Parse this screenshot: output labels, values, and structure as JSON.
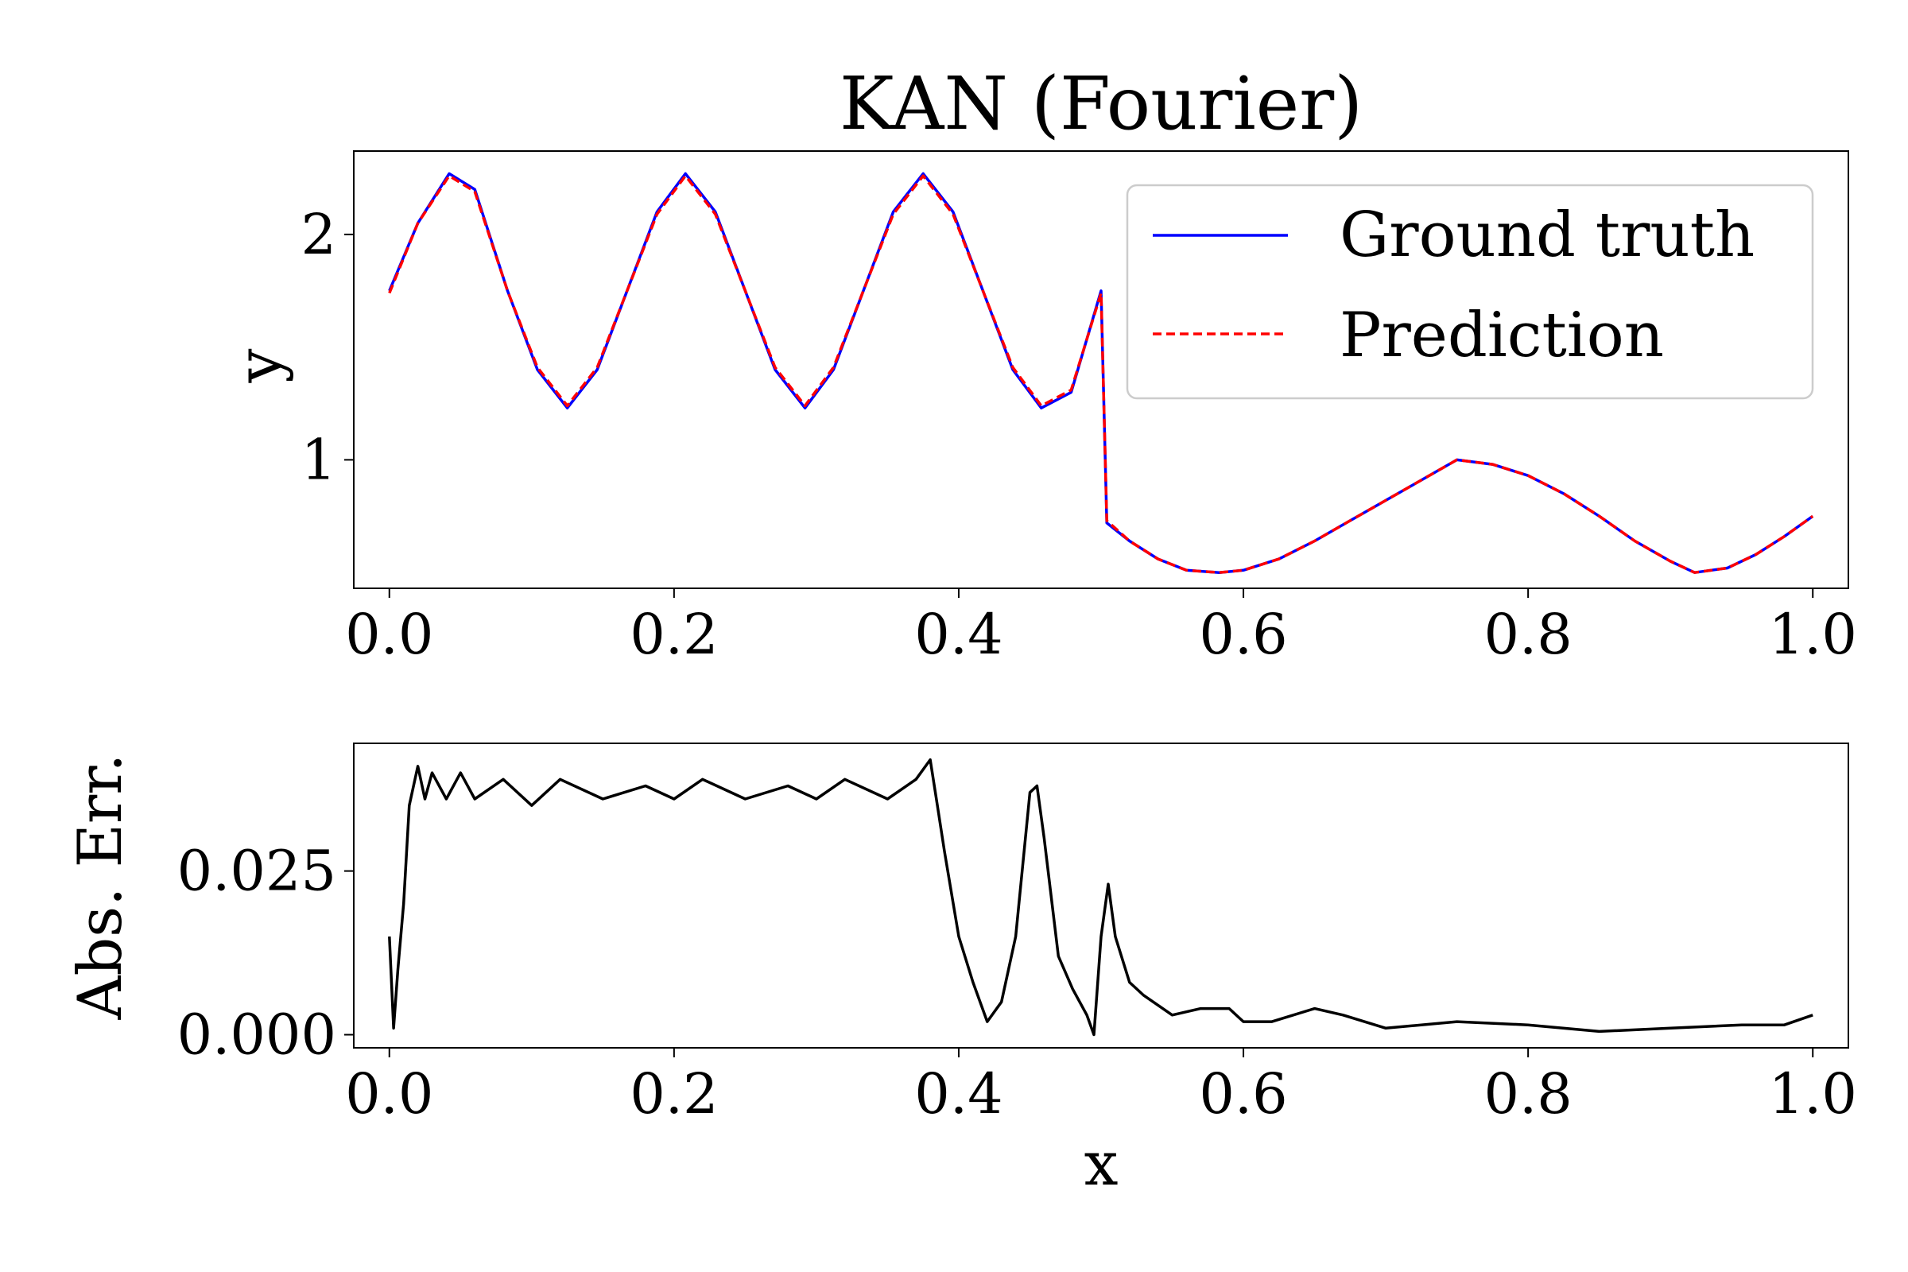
{
  "chart_data": [
    {
      "type": "line",
      "title": "KAN (Fourier)",
      "xlabel": "",
      "ylabel": "y",
      "xlim": [
        -0.025,
        1.025
      ],
      "ylim": [
        0.43,
        2.37
      ],
      "x_ticks": [
        "0.0",
        "0.2",
        "0.4",
        "0.6",
        "0.8",
        "1.0"
      ],
      "y_ticks": [
        "1",
        "2"
      ],
      "grid": false,
      "legend": {
        "placement": "top-right",
        "entries": [
          "Ground truth",
          "Prediction"
        ]
      },
      "series": [
        {
          "name": "Ground truth",
          "color": "#0000ff",
          "style": "solid",
          "x": [
            0.0,
            0.02,
            0.042,
            0.06,
            0.083,
            0.104,
            0.125,
            0.146,
            0.167,
            0.188,
            0.208,
            0.229,
            0.25,
            0.271,
            0.292,
            0.312,
            0.333,
            0.354,
            0.375,
            0.396,
            0.417,
            0.438,
            0.458,
            0.479,
            0.5,
            0.504,
            0.52,
            0.54,
            0.56,
            0.583,
            0.6,
            0.625,
            0.65,
            0.675,
            0.7,
            0.725,
            0.75,
            0.775,
            0.8,
            0.825,
            0.85,
            0.875,
            0.9,
            0.917,
            0.94,
            0.96,
            0.98,
            1.0
          ],
          "y": [
            1.75,
            2.05,
            2.27,
            2.2,
            1.75,
            1.4,
            1.23,
            1.4,
            1.75,
            2.1,
            2.27,
            2.1,
            1.75,
            1.4,
            1.23,
            1.4,
            1.75,
            2.1,
            2.27,
            2.1,
            1.75,
            1.4,
            1.23,
            1.3,
            1.75,
            0.72,
            0.64,
            0.56,
            0.51,
            0.5,
            0.51,
            0.56,
            0.64,
            0.73,
            0.82,
            0.91,
            1.0,
            0.98,
            0.93,
            0.85,
            0.75,
            0.64,
            0.55,
            0.5,
            0.52,
            0.58,
            0.66,
            0.75
          ]
        },
        {
          "name": "Prediction",
          "color": "#ff0000",
          "style": "dashed",
          "x": [
            0.0,
            0.02,
            0.042,
            0.06,
            0.083,
            0.104,
            0.125,
            0.146,
            0.167,
            0.188,
            0.208,
            0.229,
            0.25,
            0.271,
            0.292,
            0.312,
            0.333,
            0.354,
            0.375,
            0.396,
            0.417,
            0.438,
            0.458,
            0.479,
            0.5,
            0.504,
            0.52,
            0.54,
            0.56,
            0.583,
            0.6,
            0.625,
            0.65,
            0.675,
            0.7,
            0.725,
            0.75,
            0.775,
            0.8,
            0.825,
            0.85,
            0.875,
            0.9,
            0.917,
            0.94,
            0.96,
            0.98,
            1.0
          ],
          "y": [
            1.74,
            2.05,
            2.26,
            2.19,
            1.75,
            1.41,
            1.24,
            1.41,
            1.75,
            2.09,
            2.26,
            2.09,
            1.75,
            1.41,
            1.24,
            1.41,
            1.75,
            2.09,
            2.26,
            2.09,
            1.75,
            1.41,
            1.24,
            1.31,
            1.74,
            0.73,
            0.64,
            0.56,
            0.51,
            0.5,
            0.51,
            0.56,
            0.64,
            0.73,
            0.82,
            0.91,
            1.0,
            0.98,
            0.93,
            0.85,
            0.75,
            0.64,
            0.55,
            0.5,
            0.52,
            0.58,
            0.66,
            0.75
          ]
        }
      ]
    },
    {
      "type": "line",
      "title": "",
      "xlabel": "x",
      "ylabel": "Abs. Err.",
      "xlim": [
        -0.025,
        1.025
      ],
      "ylim": [
        -0.002,
        0.0445
      ],
      "x_ticks": [
        "0.0",
        "0.2",
        "0.4",
        "0.6",
        "0.8",
        "1.0"
      ],
      "y_ticks": [
        "0.000",
        "0.025"
      ],
      "grid": false,
      "series": [
        {
          "color": "#000000",
          "style": "solid",
          "x": [
            0.0,
            0.003,
            0.006,
            0.01,
            0.014,
            0.02,
            0.025,
            0.03,
            0.04,
            0.05,
            0.06,
            0.08,
            0.1,
            0.12,
            0.15,
            0.18,
            0.2,
            0.22,
            0.25,
            0.28,
            0.3,
            0.32,
            0.35,
            0.37,
            0.38,
            0.385,
            0.39,
            0.4,
            0.41,
            0.42,
            0.43,
            0.44,
            0.45,
            0.455,
            0.46,
            0.47,
            0.48,
            0.49,
            0.495,
            0.5,
            0.505,
            0.51,
            0.52,
            0.53,
            0.55,
            0.57,
            0.59,
            0.6,
            0.62,
            0.65,
            0.67,
            0.7,
            0.75,
            0.8,
            0.85,
            0.9,
            0.95,
            0.98,
            1.0
          ],
          "y": [
            0.015,
            0.001,
            0.01,
            0.02,
            0.035,
            0.041,
            0.036,
            0.04,
            0.036,
            0.04,
            0.036,
            0.039,
            0.035,
            0.039,
            0.036,
            0.038,
            0.036,
            0.039,
            0.036,
            0.038,
            0.036,
            0.039,
            0.036,
            0.039,
            0.042,
            0.035,
            0.028,
            0.015,
            0.008,
            0.002,
            0.005,
            0.015,
            0.037,
            0.038,
            0.03,
            0.012,
            0.007,
            0.003,
            0.0,
            0.015,
            0.023,
            0.015,
            0.008,
            0.006,
            0.003,
            0.004,
            0.004,
            0.002,
            0.002,
            0.004,
            0.003,
            0.001,
            0.002,
            0.0015,
            0.0005,
            0.001,
            0.0015,
            0.0015,
            0.003
          ]
        }
      ]
    }
  ]
}
